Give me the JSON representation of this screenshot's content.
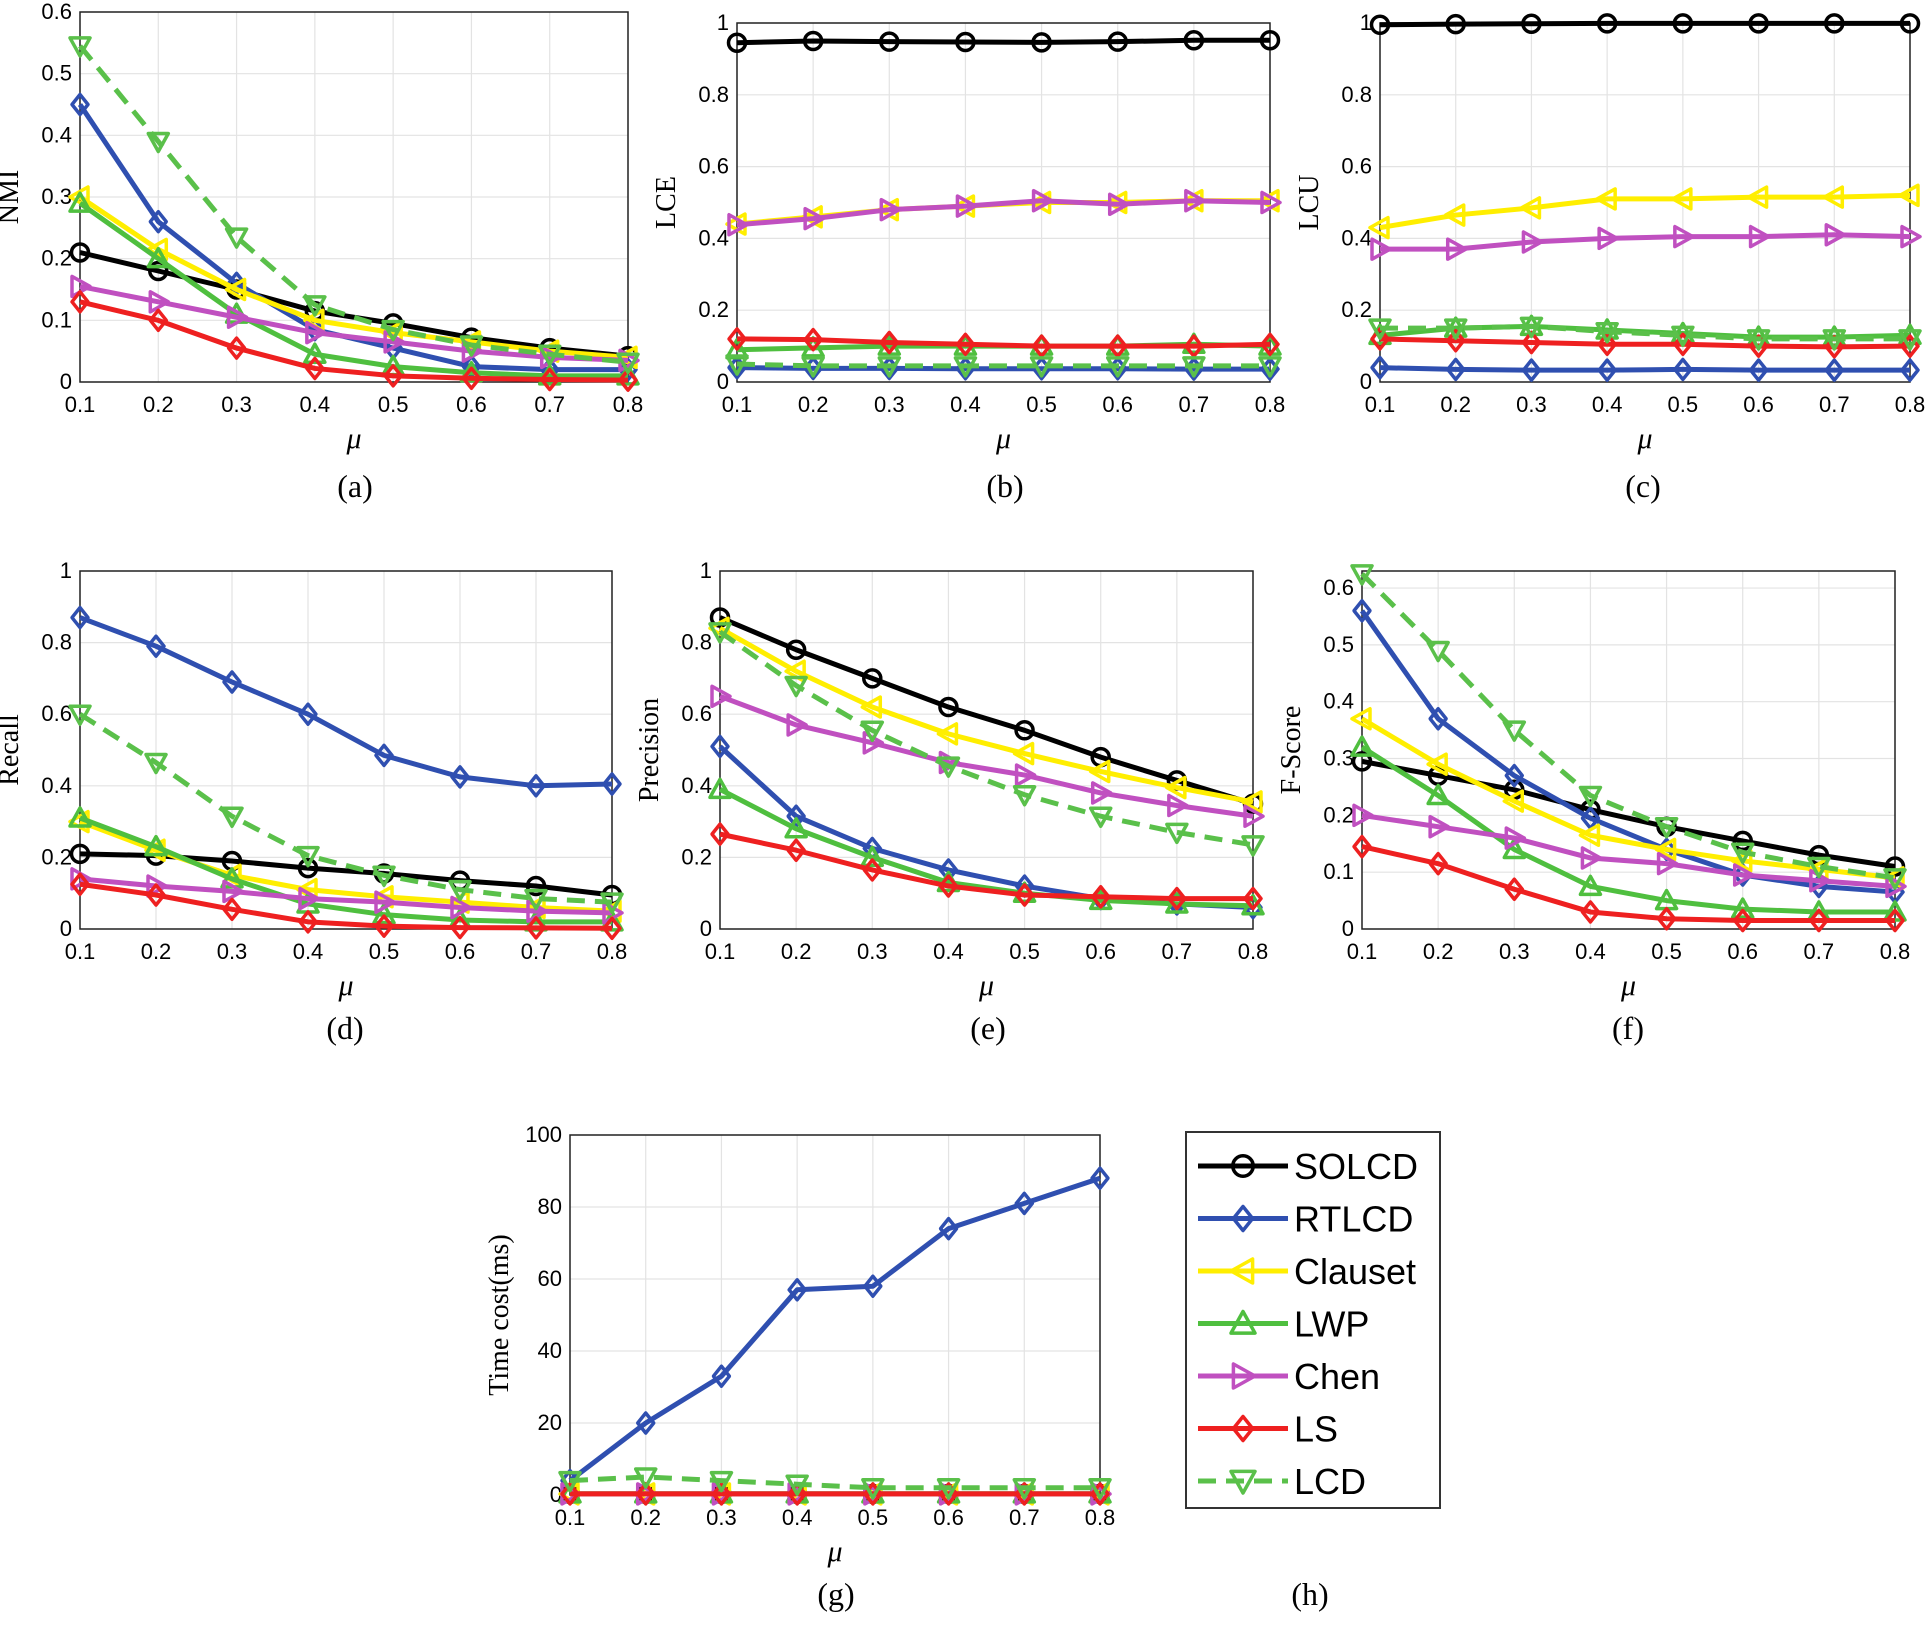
{
  "legend_caption": "(h)",
  "chart_data": [
    {
      "type": "line",
      "caption": "(a)",
      "ylabel": "NMI",
      "xlabel": "μ",
      "x": [
        0.1,
        0.2,
        0.3,
        0.4,
        0.5,
        0.6,
        0.7,
        0.8
      ],
      "xticks": [
        "0.1",
        "0.2",
        "0.3",
        "0.4",
        "0.5",
        "0.6",
        "0.7",
        "0.8"
      ],
      "ylim": [
        0,
        0.6
      ],
      "yticks": [
        0,
        0.1,
        0.2,
        0.3,
        0.4,
        0.5,
        0.6
      ],
      "ytick_labels": [
        "0",
        "0.1",
        "0.2",
        "0.3",
        "0.4",
        "0.5",
        "0.6"
      ],
      "series": [
        {
          "name": "SOLCD",
          "values": [
            0.21,
            0.18,
            0.15,
            0.115,
            0.095,
            0.072,
            0.055,
            0.042
          ]
        },
        {
          "name": "RTLCD",
          "values": [
            0.45,
            0.26,
            0.16,
            0.085,
            0.055,
            0.025,
            0.02,
            0.02
          ]
        },
        {
          "name": "Clauset",
          "values": [
            0.3,
            0.215,
            0.15,
            0.1,
            0.08,
            0.065,
            0.05,
            0.04
          ]
        },
        {
          "name": "LWP",
          "values": [
            0.29,
            0.2,
            0.11,
            0.045,
            0.025,
            0.015,
            0.01,
            0.01
          ]
        },
        {
          "name": "Chen",
          "values": [
            0.155,
            0.13,
            0.105,
            0.08,
            0.065,
            0.05,
            0.04,
            0.035
          ]
        },
        {
          "name": "LS",
          "values": [
            0.13,
            0.1,
            0.055,
            0.022,
            0.01,
            0.006,
            0.004,
            0.003
          ]
        },
        {
          "name": "LCD",
          "values": [
            0.545,
            0.39,
            0.235,
            0.125,
            0.085,
            0.06,
            0.045,
            0.032
          ]
        }
      ]
    },
    {
      "type": "line",
      "caption": "(b)",
      "ylabel": "LCE",
      "xlabel": "μ",
      "x": [
        0.1,
        0.2,
        0.3,
        0.4,
        0.5,
        0.6,
        0.7,
        0.8
      ],
      "xticks": [
        "0.1",
        "0.2",
        "0.3",
        "0.4",
        "0.5",
        "0.6",
        "0.7",
        "0.8"
      ],
      "ylim": [
        0,
        1
      ],
      "yticks": [
        0,
        0.2,
        0.4,
        0.6,
        0.8,
        1
      ],
      "ytick_labels": [
        "0",
        "0.2",
        "0.4",
        "0.6",
        "0.8",
        "1"
      ],
      "series": [
        {
          "name": "SOLCD",
          "values": [
            0.945,
            0.95,
            0.948,
            0.947,
            0.946,
            0.948,
            0.952,
            0.952
          ]
        },
        {
          "name": "RTLCD",
          "values": [
            0.04,
            0.038,
            0.038,
            0.037,
            0.037,
            0.037,
            0.036,
            0.036
          ]
        },
        {
          "name": "Clauset",
          "values": [
            0.44,
            0.46,
            0.48,
            0.49,
            0.5,
            0.5,
            0.505,
            0.505
          ]
        },
        {
          "name": "LWP",
          "values": [
            0.09,
            0.095,
            0.1,
            0.1,
            0.1,
            0.1,
            0.105,
            0.1
          ]
        },
        {
          "name": "Chen",
          "values": [
            0.438,
            0.455,
            0.48,
            0.49,
            0.505,
            0.495,
            0.505,
            0.5
          ]
        },
        {
          "name": "LS",
          "values": [
            0.12,
            0.118,
            0.11,
            0.105,
            0.1,
            0.1,
            0.1,
            0.105
          ]
        },
        {
          "name": "LCD",
          "values": [
            0.05,
            0.045,
            0.045,
            0.045,
            0.045,
            0.045,
            0.045,
            0.045
          ]
        }
      ]
    },
    {
      "type": "line",
      "caption": "(c)",
      "ylabel": "LCU",
      "xlabel": "μ",
      "x": [
        0.1,
        0.2,
        0.3,
        0.4,
        0.5,
        0.6,
        0.7,
        0.8
      ],
      "xticks": [
        "0.1",
        "0.2",
        "0.3",
        "0.4",
        "0.5",
        "0.6",
        "0.7",
        "0.8"
      ],
      "ylim": [
        0,
        1
      ],
      "yticks": [
        0,
        0.2,
        0.4,
        0.6,
        0.8,
        1
      ],
      "ytick_labels": [
        "0",
        "0.2",
        "0.4",
        "0.6",
        "0.8",
        "1"
      ],
      "series": [
        {
          "name": "SOLCD",
          "values": [
            0.995,
            0.997,
            0.998,
            0.999,
            0.999,
            0.999,
            0.999,
            0.999
          ]
        },
        {
          "name": "RTLCD",
          "values": [
            0.04,
            0.035,
            0.033,
            0.033,
            0.035,
            0.033,
            0.033,
            0.033
          ]
        },
        {
          "name": "Clauset",
          "values": [
            0.43,
            0.465,
            0.485,
            0.51,
            0.51,
            0.515,
            0.515,
            0.52
          ]
        },
        {
          "name": "LWP",
          "values": [
            0.13,
            0.15,
            0.155,
            0.145,
            0.135,
            0.125,
            0.125,
            0.13
          ]
        },
        {
          "name": "Chen",
          "values": [
            0.37,
            0.37,
            0.39,
            0.4,
            0.405,
            0.405,
            0.41,
            0.405
          ]
        },
        {
          "name": "LS",
          "values": [
            0.12,
            0.115,
            0.11,
            0.105,
            0.105,
            0.1,
            0.098,
            0.1
          ]
        },
        {
          "name": "LCD",
          "values": [
            0.15,
            0.15,
            0.155,
            0.14,
            0.13,
            0.12,
            0.12,
            0.12
          ]
        }
      ]
    },
    {
      "type": "line",
      "caption": "(d)",
      "ylabel": "Recall",
      "xlabel": "μ",
      "x": [
        0.1,
        0.2,
        0.3,
        0.4,
        0.5,
        0.6,
        0.7,
        0.8
      ],
      "xticks": [
        "0.1",
        "0.2",
        "0.3",
        "0.4",
        "0.5",
        "0.6",
        "0.7",
        "0.8"
      ],
      "ylim": [
        0,
        1
      ],
      "yticks": [
        0,
        0.2,
        0.4,
        0.6,
        0.8,
        1
      ],
      "ytick_labels": [
        "0",
        "0.2",
        "0.4",
        "0.6",
        "0.8",
        "1"
      ],
      "series": [
        {
          "name": "SOLCD",
          "values": [
            0.21,
            0.205,
            0.19,
            0.17,
            0.155,
            0.135,
            0.12,
            0.095
          ]
        },
        {
          "name": "RTLCD",
          "values": [
            0.87,
            0.79,
            0.69,
            0.6,
            0.485,
            0.425,
            0.4,
            0.405
          ]
        },
        {
          "name": "Clauset",
          "values": [
            0.3,
            0.22,
            0.15,
            0.11,
            0.09,
            0.075,
            0.06,
            0.05
          ]
        },
        {
          "name": "LWP",
          "values": [
            0.31,
            0.23,
            0.14,
            0.07,
            0.04,
            0.025,
            0.02,
            0.02
          ]
        },
        {
          "name": "Chen",
          "values": [
            0.14,
            0.12,
            0.105,
            0.085,
            0.075,
            0.06,
            0.05,
            0.045
          ]
        },
        {
          "name": "LS",
          "values": [
            0.125,
            0.095,
            0.055,
            0.02,
            0.008,
            0.004,
            0.003,
            0.002
          ]
        },
        {
          "name": "LCD",
          "values": [
            0.6,
            0.465,
            0.315,
            0.205,
            0.15,
            0.11,
            0.085,
            0.075
          ]
        }
      ]
    },
    {
      "type": "line",
      "caption": "(e)",
      "ylabel": "Precision",
      "xlabel": "μ",
      "x": [
        0.1,
        0.2,
        0.3,
        0.4,
        0.5,
        0.6,
        0.7,
        0.8
      ],
      "xticks": [
        "0.1",
        "0.2",
        "0.3",
        "0.4",
        "0.5",
        "0.6",
        "0.7",
        "0.8"
      ],
      "ylim": [
        0,
        1
      ],
      "yticks": [
        0,
        0.2,
        0.4,
        0.6,
        0.8,
        1
      ],
      "ytick_labels": [
        "0",
        "0.2",
        "0.4",
        "0.6",
        "0.8",
        "1"
      ],
      "series": [
        {
          "name": "SOLCD",
          "values": [
            0.87,
            0.78,
            0.7,
            0.62,
            0.555,
            0.48,
            0.415,
            0.35
          ]
        },
        {
          "name": "RTLCD",
          "values": [
            0.51,
            0.315,
            0.225,
            0.165,
            0.12,
            0.085,
            0.07,
            0.06
          ]
        },
        {
          "name": "Clauset",
          "values": [
            0.84,
            0.72,
            0.62,
            0.545,
            0.49,
            0.44,
            0.395,
            0.355
          ]
        },
        {
          "name": "LWP",
          "values": [
            0.39,
            0.28,
            0.2,
            0.13,
            0.1,
            0.08,
            0.07,
            0.065
          ]
        },
        {
          "name": "Chen",
          "values": [
            0.65,
            0.57,
            0.52,
            0.465,
            0.43,
            0.38,
            0.345,
            0.315
          ]
        },
        {
          "name": "LS",
          "values": [
            0.265,
            0.22,
            0.165,
            0.12,
            0.095,
            0.09,
            0.085,
            0.085
          ]
        },
        {
          "name": "LCD",
          "values": [
            0.83,
            0.68,
            0.555,
            0.455,
            0.375,
            0.315,
            0.27,
            0.235
          ]
        }
      ]
    },
    {
      "type": "line",
      "caption": "(f)",
      "ylabel": "F-Score",
      "xlabel": "μ",
      "x": [
        0.1,
        0.2,
        0.3,
        0.4,
        0.5,
        0.6,
        0.7,
        0.8
      ],
      "xticks": [
        "0.1",
        "0.2",
        "0.3",
        "0.4",
        "0.5",
        "0.6",
        "0.7",
        "0.8"
      ],
      "ylim": [
        0,
        0.63
      ],
      "yticks": [
        0,
        0.1,
        0.2,
        0.3,
        0.4,
        0.5,
        0.6
      ],
      "ytick_labels": [
        "0",
        "0.1",
        "0.2",
        "0.3",
        "0.4",
        "0.5",
        "0.6"
      ],
      "series": [
        {
          "name": "SOLCD",
          "values": [
            0.295,
            0.27,
            0.245,
            0.21,
            0.18,
            0.155,
            0.13,
            0.11
          ]
        },
        {
          "name": "RTLCD",
          "values": [
            0.56,
            0.37,
            0.27,
            0.195,
            0.14,
            0.095,
            0.075,
            0.065
          ]
        },
        {
          "name": "Clauset",
          "values": [
            0.37,
            0.29,
            0.225,
            0.165,
            0.14,
            0.12,
            0.105,
            0.09
          ]
        },
        {
          "name": "LWP",
          "values": [
            0.32,
            0.235,
            0.14,
            0.075,
            0.05,
            0.035,
            0.03,
            0.03
          ]
        },
        {
          "name": "Chen",
          "values": [
            0.2,
            0.18,
            0.16,
            0.125,
            0.115,
            0.095,
            0.085,
            0.075
          ]
        },
        {
          "name": "LS",
          "values": [
            0.145,
            0.115,
            0.07,
            0.03,
            0.018,
            0.015,
            0.015,
            0.015
          ]
        },
        {
          "name": "LCD",
          "values": [
            0.625,
            0.49,
            0.35,
            0.235,
            0.18,
            0.135,
            0.11,
            0.09
          ]
        }
      ]
    },
    {
      "type": "line",
      "caption": "(g)",
      "ylabel": "Time cost(ms)",
      "xlabel": "μ",
      "x": [
        0.1,
        0.2,
        0.3,
        0.4,
        0.5,
        0.6,
        0.7,
        0.8
      ],
      "xticks": [
        "0.1",
        "0.2",
        "0.3",
        "0.4",
        "0.5",
        "0.6",
        "0.7",
        "0.8"
      ],
      "ylim": [
        0,
        100
      ],
      "yticks": [
        0,
        20,
        40,
        60,
        80,
        100
      ],
      "ytick_labels": [
        "0",
        "20",
        "40",
        "60",
        "80",
        "100"
      ],
      "series": [
        {
          "name": "SOLCD",
          "values": [
            0.3,
            0.3,
            0.3,
            0.3,
            0.3,
            0.3,
            0.3,
            0.3
          ]
        },
        {
          "name": "RTLCD",
          "values": [
            4,
            20,
            33,
            57,
            58,
            74,
            81,
            88
          ]
        },
        {
          "name": "Clauset",
          "values": [
            0.3,
            0.3,
            0.3,
            0.3,
            0.3,
            0.3,
            0.3,
            0.3
          ]
        },
        {
          "name": "LWP",
          "values": [
            0.3,
            0.3,
            0.3,
            0.3,
            0.3,
            0.3,
            0.3,
            0.3
          ]
        },
        {
          "name": "Chen",
          "values": [
            0.3,
            0.3,
            0.3,
            0.3,
            0.3,
            0.3,
            0.3,
            0.3
          ]
        },
        {
          "name": "LS",
          "values": [
            0.3,
            0.3,
            0.3,
            0.3,
            0.3,
            0.3,
            0.3,
            0.3
          ]
        },
        {
          "name": "LCD",
          "values": [
            4,
            5,
            4,
            3,
            2,
            2,
            2,
            2
          ]
        }
      ]
    }
  ],
  "legend": [
    {
      "name": "SOLCD",
      "color": "#000000",
      "marker": "circle",
      "dash": false
    },
    {
      "name": "RTLCD",
      "color": "#2f4fb0",
      "marker": "diamond",
      "dash": false
    },
    {
      "name": "Clauset",
      "color": "#ffee00",
      "marker": "triangle-left",
      "dash": false
    },
    {
      "name": "LWP",
      "color": "#4fbf3f",
      "marker": "triangle-up",
      "dash": false
    },
    {
      "name": "Chen",
      "color": "#c050c0",
      "marker": "triangle-right",
      "dash": false
    },
    {
      "name": "LS",
      "color": "#ee2020",
      "marker": "diamond",
      "dash": false
    },
    {
      "name": "LCD",
      "color": "#5ac04a",
      "marker": "triangle-down",
      "dash": true
    }
  ]
}
